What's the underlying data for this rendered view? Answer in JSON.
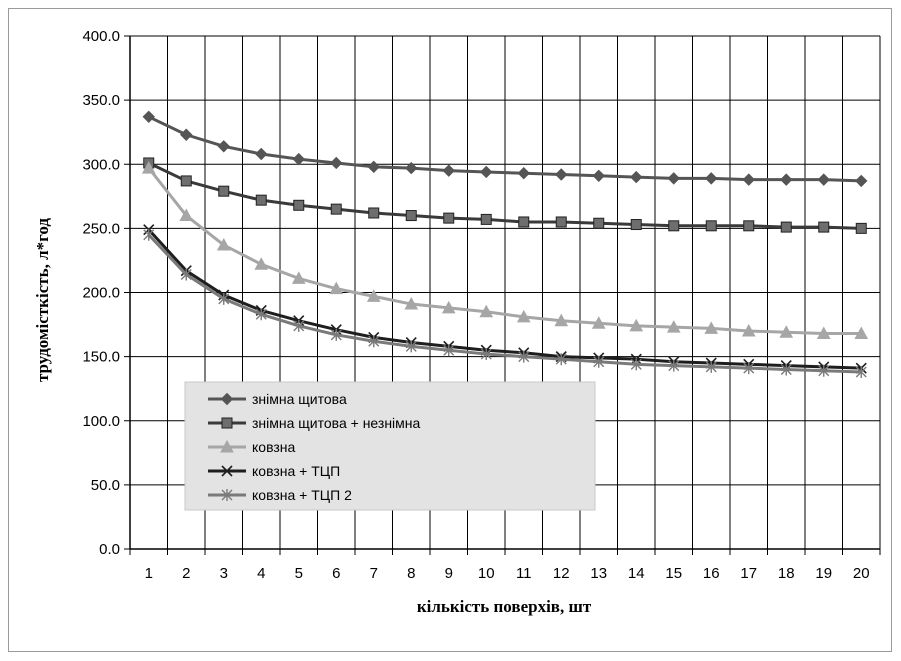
{
  "chart_data": {
    "type": "line",
    "xlabel": "кількість поверхів, шт",
    "ylabel": "трудомісткість, л*год",
    "x": [
      1,
      2,
      3,
      4,
      5,
      6,
      7,
      8,
      9,
      10,
      11,
      12,
      13,
      14,
      15,
      16,
      17,
      18,
      19,
      20
    ],
    "x_tick_labels": [
      "1",
      "2",
      "3",
      "4",
      "5",
      "6",
      "7",
      "8",
      "9",
      "10",
      "11",
      "12",
      "13",
      "14",
      "15",
      "16",
      "17",
      "18",
      "19",
      "20"
    ],
    "ylim": [
      0,
      400
    ],
    "y_tick_values": [
      0,
      50,
      100,
      150,
      200,
      250,
      300,
      350,
      400
    ],
    "y_tick_labels": [
      "0.0",
      "50.0",
      "100.0",
      "150.0",
      "200.0",
      "250.0",
      "300.0",
      "350.0",
      "400.0"
    ],
    "grid": true,
    "legend_position": "lower-left inside plot",
    "series": [
      {
        "name": "знімна щитова",
        "marker": "diamond",
        "color": "#555555",
        "values": [
          337,
          323,
          314,
          308,
          304,
          301,
          298,
          297,
          295,
          294,
          293,
          292,
          291,
          290,
          289,
          289,
          288,
          288,
          288,
          287
        ]
      },
      {
        "name": "знімна щитова + незнімна",
        "marker": "square",
        "color": "#3a3a3a",
        "values": [
          301,
          287,
          279,
          272,
          268,
          265,
          262,
          260,
          258,
          257,
          255,
          255,
          254,
          253,
          252,
          252,
          252,
          251,
          251,
          250
        ]
      },
      {
        "name": "ковзна",
        "marker": "triangle",
        "color": "#a6a6a6",
        "values": [
          297,
          260,
          237,
          222,
          211,
          203,
          197,
          191,
          188,
          185,
          181,
          178,
          176,
          174,
          173,
          172,
          170,
          169,
          168,
          168
        ]
      },
      {
        "name": "ковзна + ТЦП",
        "marker": "x",
        "color": "#1e1e1e",
        "values": [
          249,
          217,
          198,
          186,
          178,
          171,
          165,
          161,
          158,
          155,
          153,
          150,
          149,
          148,
          146,
          145,
          144,
          143,
          142,
          141
        ]
      },
      {
        "name": "ковзна + ТЦП  2",
        "marker": "star",
        "color": "#7a7a7a",
        "values": [
          245,
          214,
          195,
          183,
          174,
          167,
          162,
          158,
          155,
          152,
          150,
          148,
          146,
          144,
          143,
          142,
          141,
          140,
          139,
          138
        ]
      }
    ]
  }
}
